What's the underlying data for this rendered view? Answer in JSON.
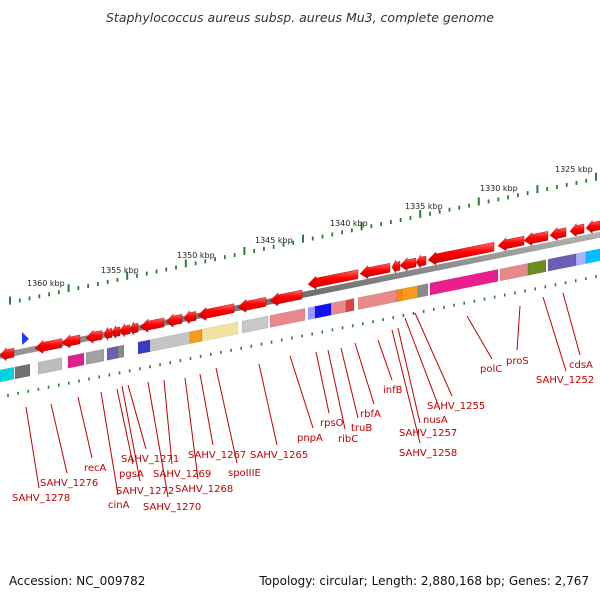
{
  "title": "Staphylococcus aureus subsp. aureus Mu3, complete genome",
  "footer": {
    "accession": "Accession: NC_009782",
    "topology": "Topology: circular; Length: 2,880,168 bp; Genes: 2,767"
  },
  "scale_labels": [
    "1325 kbp",
    "1330 kbp",
    "1335 kbp",
    "1340 kbp",
    "1345 kbp",
    "1350 kbp",
    "1355 kbp",
    "1360 kbp"
  ],
  "gene_labels": [
    "cdsA",
    "SAHV_1252",
    "proS",
    "polC",
    "SAHV_1255",
    "nusA",
    "SAHV_1257",
    "SAHV_1258",
    "infB",
    "rbfA",
    "truB",
    "ribC",
    "rpsO",
    "pnpA",
    "SAHV_1265",
    "spoIIIE",
    "SAHV_1267",
    "SAHV_1268",
    "SAHV_1269",
    "SAHV_1270",
    "SAHV_1271",
    "SAHV_1272",
    "pgsA",
    "cinA",
    "recA",
    "SAHV_1276",
    "SAHV_1278"
  ],
  "colors": {
    "gene_arrow": "#ff0000",
    "label": "#c00000",
    "scale_tick": "#2e7d32",
    "backbone": "#7a7a7a",
    "marker": "#1a3cff"
  }
}
